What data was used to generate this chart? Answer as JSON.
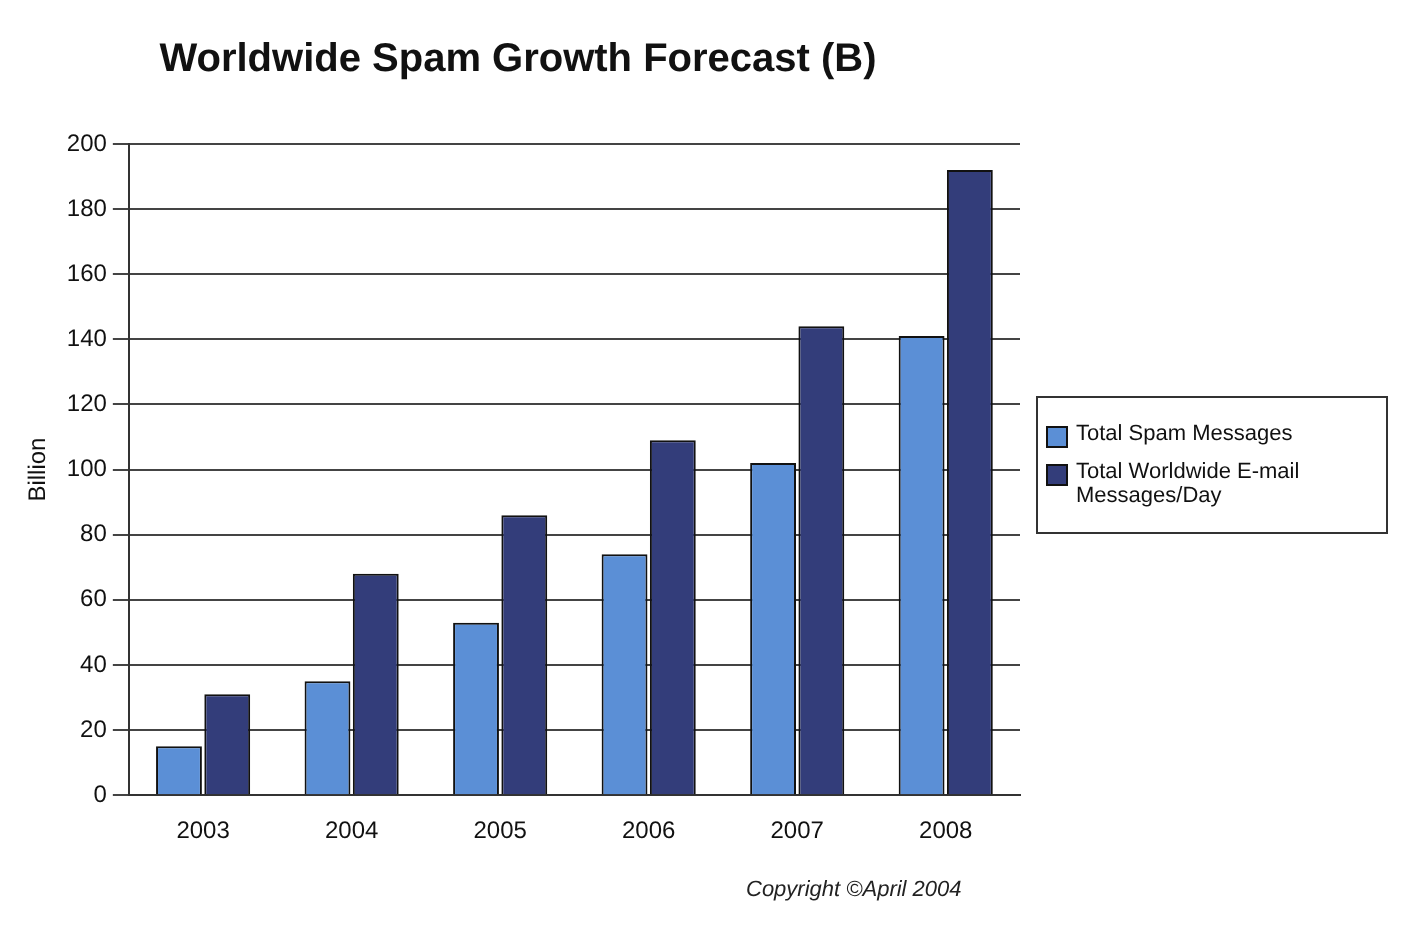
{
  "chart_data": {
    "type": "bar",
    "title": "Worldwide Spam Growth Forecast (B)",
    "ylabel": "Billion",
    "categories": [
      "2003",
      "2004",
      "2005",
      "2006",
      "2007",
      "2008"
    ],
    "series": [
      {
        "name": "Total Spam Messages",
        "color": "#5b8fd6",
        "values": [
          15,
          35,
          53,
          74,
          102,
          141
        ]
      },
      {
        "name": "Total Worldwide E-mail Messages/Day",
        "color": "#333d7a",
        "values": [
          31,
          68,
          86,
          109,
          144,
          192
        ]
      }
    ],
    "ylim": [
      0,
      200
    ],
    "yticks": [
      0,
      20,
      40,
      60,
      80,
      100,
      120,
      140,
      160,
      180,
      200
    ],
    "grid": "y",
    "legend": "right",
    "annotations": [
      "Copyright ©April 2004"
    ]
  }
}
